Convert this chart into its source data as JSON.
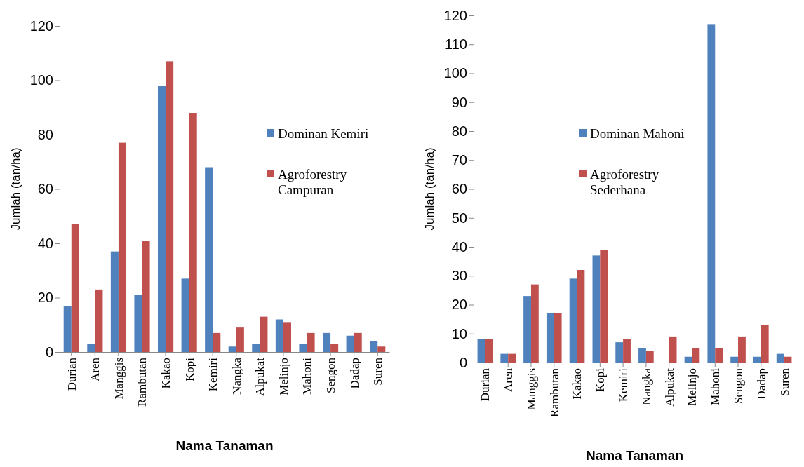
{
  "chart_data": [
    {
      "type": "bar",
      "xlabel": "Nama Tanaman",
      "ylabel": "Jumlah (tan/ha)",
      "categories": [
        "Durian",
        "Aren",
        "Manggis",
        "Rambutan",
        "Kakao",
        "Kopi",
        "Kemiri",
        "Nangka",
        "Alpukat",
        "Melinjo",
        "Mahoni",
        "Sengon",
        "Dadap",
        "Suren"
      ],
      "series": [
        {
          "name": "Dominan Kemiri",
          "color": "#4f81bd",
          "values": [
            17,
            3,
            37,
            21,
            98,
            27,
            68,
            2,
            3,
            12,
            3,
            7,
            6,
            4
          ]
        },
        {
          "name": "Agroforestry Campuran",
          "color": "#c0504d",
          "values": [
            47,
            23,
            77,
            41,
            107,
            88,
            7,
            9,
            13,
            11,
            7,
            3,
            7,
            2
          ]
        }
      ],
      "ylim": [
        0,
        120
      ],
      "yticks": [
        0,
        20,
        40,
        60,
        80,
        100,
        120
      ],
      "grid": false,
      "legend": "right"
    },
    {
      "type": "bar",
      "xlabel": "Nama Tanaman",
      "ylabel": "Jumlah (tan/ha)",
      "categories": [
        "Durian",
        "Aren",
        "Manggis",
        "Rambutan",
        "Kakao",
        "Kopi",
        "Kemiri",
        "Nangka",
        "Alpukat",
        "Melinjo",
        "Mahoni",
        "Sengon",
        "Dadap",
        "Suren"
      ],
      "series": [
        {
          "name": "Dominan Mahoni",
          "color": "#4f81bd",
          "values": [
            8,
            3,
            23,
            17,
            29,
            37,
            7,
            5,
            0,
            2,
            117,
            2,
            2,
            3
          ]
        },
        {
          "name": "Agroforestry Sederhana",
          "color": "#c0504d",
          "values": [
            8,
            3,
            27,
            17,
            32,
            39,
            8,
            4,
            9,
            5,
            5,
            9,
            13,
            2
          ]
        }
      ],
      "ylim": [
        0,
        120
      ],
      "yticks": [
        0,
        10,
        20,
        30,
        40,
        50,
        60,
        70,
        80,
        90,
        100,
        110,
        120
      ],
      "grid": false,
      "legend": "center"
    }
  ]
}
